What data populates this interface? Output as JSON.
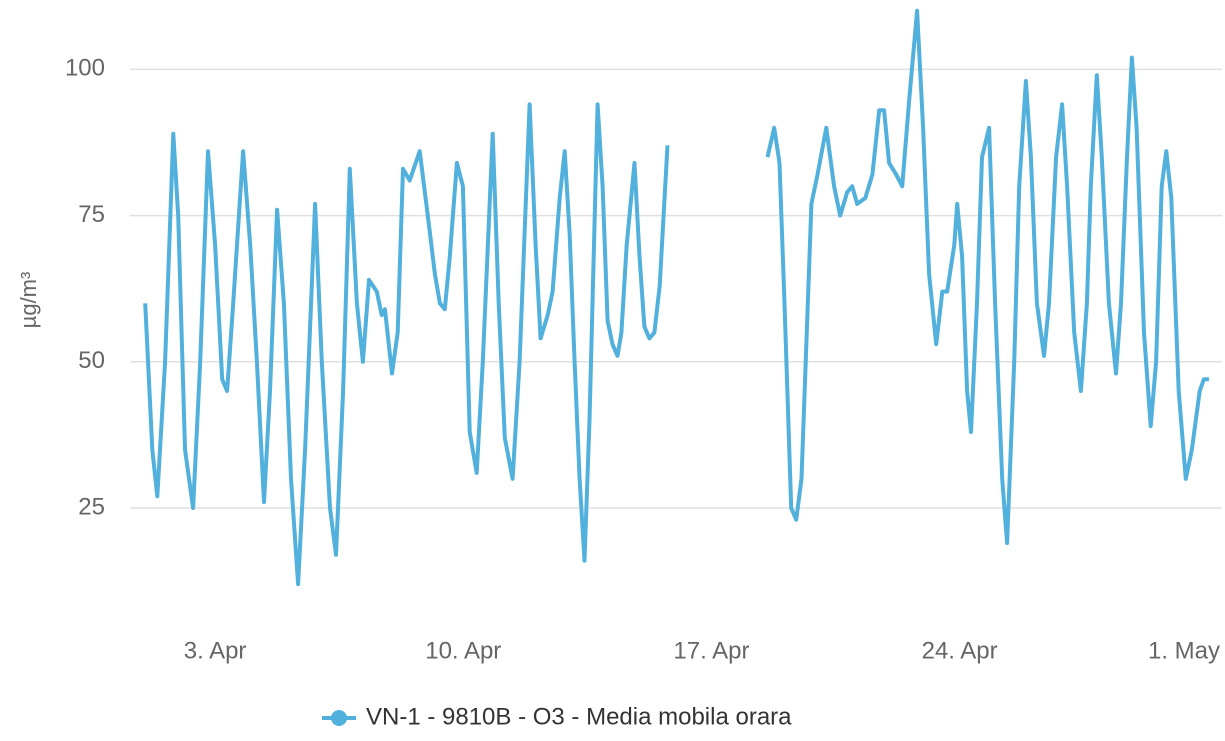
{
  "chart_data": {
    "type": "line",
    "y_label": "µg/m³",
    "xlim": [
      0.6,
      31.4
    ],
    "xticks": [
      {
        "value": 3,
        "label": "3. Apr"
      },
      {
        "value": 10,
        "label": "10. Apr"
      },
      {
        "value": 17,
        "label": "17. Apr"
      },
      {
        "value": 24,
        "label": "24. Apr"
      },
      {
        "value": 31,
        "label": "1. May"
      }
    ],
    "ylim": [
      5,
      111
    ],
    "yticks": [
      25,
      50,
      75,
      100
    ],
    "grid": true,
    "legend": "bottom",
    "series": [
      {
        "name": "VN-1 - 9810B - O3 - Media mobila orara",
        "color": "#52b0dc",
        "x": [
          1.03,
          1.23,
          1.37,
          1.59,
          1.82,
          1.96,
          2.15,
          2.38,
          2.58,
          2.8,
          3.0,
          3.2,
          3.34,
          3.51,
          3.79,
          3.99,
          4.18,
          4.38,
          4.55,
          4.75,
          4.94,
          5.14,
          5.34,
          5.54,
          5.82,
          6.01,
          6.24,
          6.41,
          6.61,
          6.8,
          7.0,
          7.17,
          7.34,
          7.56,
          7.7,
          7.79,
          7.99,
          8.15,
          8.3,
          8.49,
          8.77,
          9.0,
          9.2,
          9.34,
          9.48,
          9.62,
          9.82,
          9.99,
          10.18,
          10.38,
          10.55,
          10.83,
          11.0,
          11.17,
          11.39,
          11.59,
          11.87,
          12.04,
          12.18,
          12.38,
          12.52,
          12.72,
          12.86,
          13.0,
          13.14,
          13.28,
          13.42,
          13.56,
          13.79,
          13.93,
          14.07,
          14.21,
          14.35,
          14.46,
          14.61,
          14.83,
          14.97,
          15.11,
          15.25,
          15.39,
          15.54,
          15.76,
          17.0,
          18.58,
          18.77,
          18.92,
          19.06,
          19.25,
          19.39,
          19.54,
          19.82,
          19.99,
          20.24,
          20.46,
          20.63,
          20.83,
          20.97,
          21.11,
          21.34,
          21.54,
          21.73,
          21.87,
          22.01,
          22.21,
          22.38,
          22.58,
          22.8,
          22.97,
          23.14,
          23.34,
          23.51,
          23.65,
          23.85,
          23.93,
          24.07,
          24.21,
          24.32,
          24.49,
          24.63,
          24.83,
          25.0,
          25.2,
          25.34,
          25.54,
          25.68,
          25.87,
          26.01,
          26.18,
          26.38,
          26.52,
          26.72,
          26.89,
          27.03,
          27.23,
          27.42,
          27.59,
          27.7,
          27.87,
          28.01,
          28.21,
          28.41,
          28.55,
          28.72,
          28.86,
          28.99,
          29.2,
          29.39,
          29.54,
          29.7,
          29.83,
          29.97,
          30.18,
          30.38,
          30.55,
          30.77,
          30.89,
          31.03
        ],
        "values": [
          60,
          35,
          27,
          50,
          89,
          75,
          35,
          25,
          50,
          86,
          70,
          47,
          45,
          60,
          86,
          70,
          50,
          26,
          45,
          76,
          60,
          30,
          12,
          35,
          77,
          50,
          25,
          17,
          45,
          83,
          60,
          50,
          64,
          62,
          58,
          59,
          48,
          55,
          83,
          81,
          86,
          75,
          65,
          60,
          59,
          68,
          84,
          80,
          38,
          31,
          50,
          89,
          60,
          37,
          30,
          50,
          94,
          70,
          54,
          58,
          62,
          78,
          86,
          72,
          50,
          30,
          16,
          40,
          94,
          80,
          57,
          53,
          51,
          55,
          70,
          84,
          68,
          56,
          54,
          55,
          63,
          87,
          null,
          85,
          90,
          84,
          60,
          25,
          23,
          30,
          77,
          82,
          90,
          80,
          75,
          79,
          80,
          77,
          78,
          82,
          93,
          93,
          84,
          82,
          80,
          95,
          110,
          90,
          65,
          53,
          62,
          62,
          70,
          77,
          68,
          45,
          38,
          60,
          85,
          90,
          60,
          30,
          19,
          50,
          80,
          98,
          85,
          60,
          51,
          60,
          85,
          94,
          80,
          55,
          45,
          60,
          80,
          99,
          85,
          60,
          48,
          60,
          85,
          102,
          90,
          55,
          39,
          50,
          80,
          86,
          78,
          45,
          30,
          35,
          45,
          47,
          47
        ]
      }
    ]
  }
}
